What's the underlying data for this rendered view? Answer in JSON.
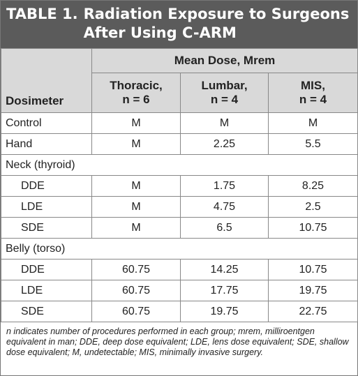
{
  "title": {
    "label": "TABLE 1.",
    "text": "Radiation Exposure to Surgeons After Using C-ARM"
  },
  "table": {
    "group_header": "Mean Dose, Mrem",
    "columns": [
      [
        "Dosimeter"
      ],
      [
        "Thoracic,",
        "n = 6"
      ],
      [
        "Lumbar,",
        "n = 4"
      ],
      [
        "MIS,",
        "n = 4"
      ]
    ],
    "rows": [
      {
        "cells": [
          "Control",
          "M",
          "M",
          "M"
        ]
      },
      {
        "cells": [
          "Hand",
          "M",
          "2.25",
          "5.5"
        ]
      },
      {
        "section": "Neck (thyroid)",
        "rows": [
          [
            "DDE",
            "M",
            "1.75",
            "8.25"
          ],
          [
            "LDE",
            "M",
            "4.75",
            "2.5"
          ],
          [
            "SDE",
            "M",
            "6.5",
            "10.75"
          ]
        ]
      },
      {
        "section": "Belly (torso)",
        "rows": [
          [
            "DDE",
            "60.75",
            "14.25",
            "10.75"
          ],
          [
            "LDE",
            "60.75",
            "17.75",
            "19.75"
          ],
          [
            "SDE",
            "60.75",
            "19.75",
            "22.75"
          ]
        ]
      }
    ]
  },
  "footnote": "n indicates number of procedures performed in each group; mrem, milliroentgen equivalent in man; DDE, deep dose equivalent; LDE, lens dose equivalent; SDE, shallow dose equivalent; M, undetectable; MIS, minimally invasive surgery."
}
